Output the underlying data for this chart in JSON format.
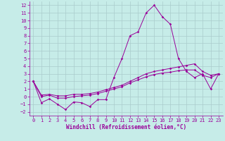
{
  "xlabel": "Windchill (Refroidissement éolien,°C)",
  "background_color": "#c6ece8",
  "line_color": "#990099",
  "grid_color": "#aacccc",
  "xlim": [
    -0.5,
    23.5
  ],
  "ylim": [
    -2.5,
    12.5
  ],
  "yticks": [
    -2,
    -1,
    0,
    1,
    2,
    3,
    4,
    5,
    6,
    7,
    8,
    9,
    10,
    11,
    12
  ],
  "xticks": [
    0,
    1,
    2,
    3,
    4,
    5,
    6,
    7,
    8,
    9,
    10,
    11,
    12,
    13,
    14,
    15,
    16,
    17,
    18,
    19,
    20,
    21,
    22,
    23
  ],
  "line1_x": [
    0,
    1,
    2,
    3,
    4,
    5,
    6,
    7,
    8,
    9,
    10,
    11,
    12,
    13,
    14,
    15,
    16,
    17,
    18,
    19,
    20,
    21,
    22,
    23
  ],
  "line1_y": [
    2.0,
    -0.8,
    -0.3,
    -1.0,
    -1.7,
    -0.7,
    -0.8,
    -1.3,
    -0.4,
    -0.4,
    2.5,
    5.0,
    8.0,
    8.5,
    11.0,
    12.0,
    10.5,
    9.5,
    5.0,
    3.3,
    2.5,
    3.0,
    1.0,
    3.0
  ],
  "line2_x": [
    0,
    1,
    2,
    3,
    4,
    5,
    6,
    7,
    8,
    9,
    10,
    11,
    12,
    13,
    14,
    15,
    16,
    17,
    18,
    19,
    20,
    21,
    22,
    23
  ],
  "line2_y": [
    2.0,
    0.2,
    0.3,
    0.1,
    0.1,
    0.3,
    0.3,
    0.4,
    0.6,
    0.9,
    1.2,
    1.5,
    2.0,
    2.5,
    3.0,
    3.3,
    3.5,
    3.7,
    3.9,
    4.1,
    4.3,
    3.3,
    2.8,
    3.0
  ],
  "line3_x": [
    0,
    1,
    2,
    3,
    4,
    5,
    6,
    7,
    8,
    9,
    10,
    11,
    12,
    13,
    14,
    15,
    16,
    17,
    18,
    19,
    20,
    21,
    22,
    23
  ],
  "line3_y": [
    2.0,
    0.0,
    0.2,
    -0.2,
    -0.2,
    0.0,
    0.1,
    0.2,
    0.4,
    0.7,
    1.0,
    1.3,
    1.8,
    2.2,
    2.6,
    2.9,
    3.1,
    3.2,
    3.4,
    3.5,
    3.5,
    2.8,
    2.5,
    3.0
  ],
  "tick_fontsize": 5,
  "xlabel_fontsize": 5.5
}
